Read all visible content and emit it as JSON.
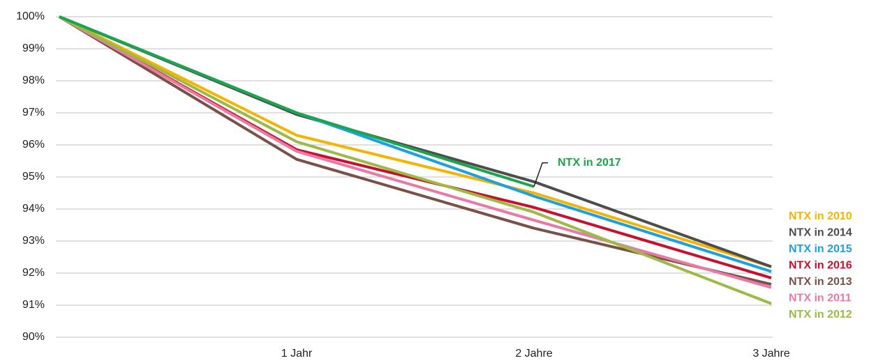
{
  "chart_data": {
    "type": "line",
    "categories": [
      null,
      "1 Jahr",
      "2 Jahre",
      "3 Jahre"
    ],
    "ylim": [
      90,
      100
    ],
    "yticks": [
      {
        "value": 90,
        "label": "90%"
      },
      {
        "value": 91,
        "label": "91%"
      },
      {
        "value": 92,
        "label": "92%"
      },
      {
        "value": 93,
        "label": "93%"
      },
      {
        "value": 94,
        "label": "94%"
      },
      {
        "value": 95,
        "label": "95%"
      },
      {
        "value": 96,
        "label": "96%"
      },
      {
        "value": 97,
        "label": "97%"
      },
      {
        "value": 98,
        "label": "98%"
      },
      {
        "value": 99,
        "label": "99%"
      },
      {
        "value": 100,
        "label": "100%"
      }
    ],
    "grid": true,
    "series": [
      {
        "name": "NTX in 2010",
        "color": "#f5b400",
        "values": [
          100,
          96.3,
          94.5,
          92.2
        ]
      },
      {
        "name": "NTX in 2014",
        "color": "#4d4d4d",
        "values": [
          100,
          96.95,
          94.85,
          92.2
        ]
      },
      {
        "name": "NTX in 2015",
        "color": "#1ba1e2",
        "values": [
          100,
          97.0,
          94.4,
          92.05
        ]
      },
      {
        "name": "NTX in 2016",
        "color": "#c8102e",
        "values": [
          100,
          95.85,
          94.05,
          91.85
        ]
      },
      {
        "name": "NTX in 2013",
        "color": "#7b5147",
        "values": [
          100,
          95.55,
          93.4,
          91.65
        ]
      },
      {
        "name": "NTX in 2011",
        "color": "#e87aa4",
        "values": [
          100,
          95.8,
          93.65,
          91.55
        ]
      },
      {
        "name": "NTX in 2012",
        "color": "#9bbb42",
        "values": [
          100,
          96.1,
          93.9,
          91.05
        ]
      },
      {
        "name": "NTX in 2017",
        "color": "#1aa64a",
        "values": [
          100,
          97.0,
          94.7,
          null
        ]
      }
    ]
  }
}
